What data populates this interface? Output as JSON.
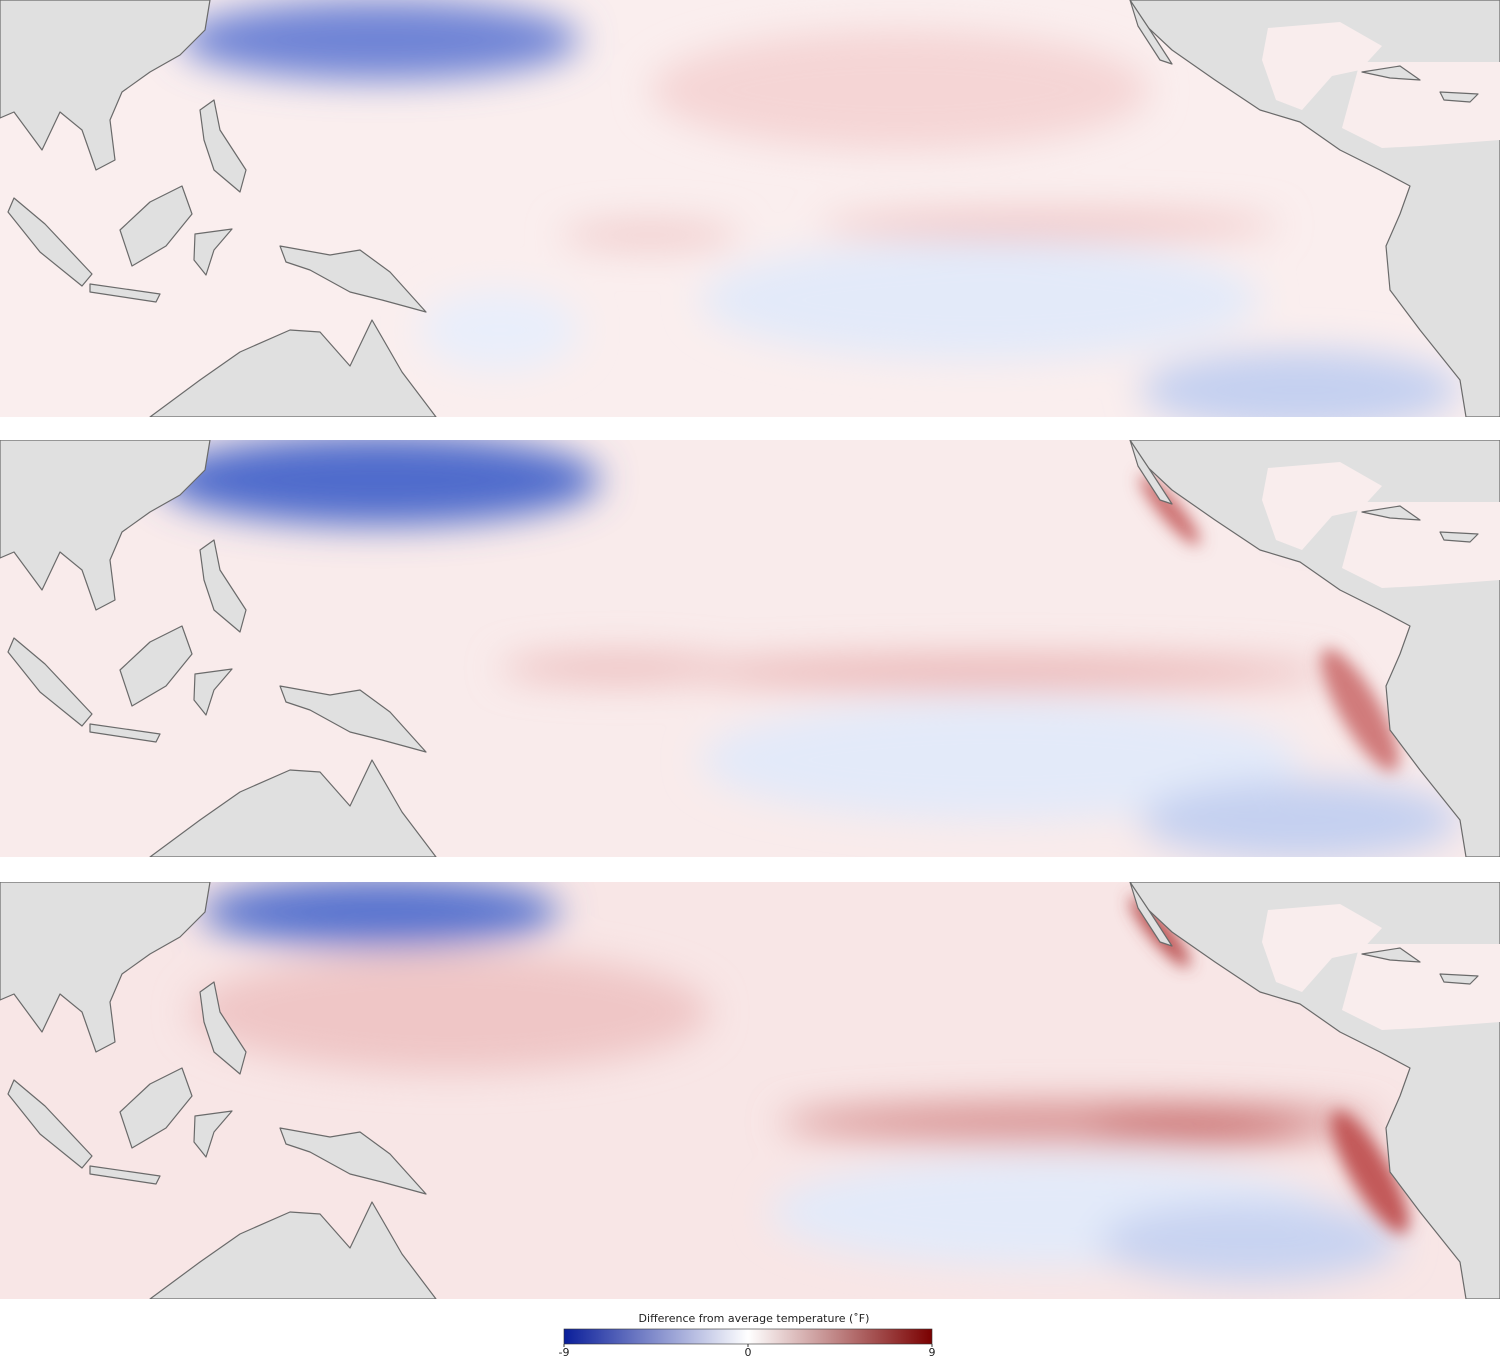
{
  "legend": {
    "title": "Difference from average temperature (˚F)",
    "range": [
      -9,
      9
    ],
    "ticks": [
      -9,
      0,
      9
    ],
    "colors": [
      "#0a1e9a",
      "#ffffff",
      "#7a0000"
    ]
  }
}
